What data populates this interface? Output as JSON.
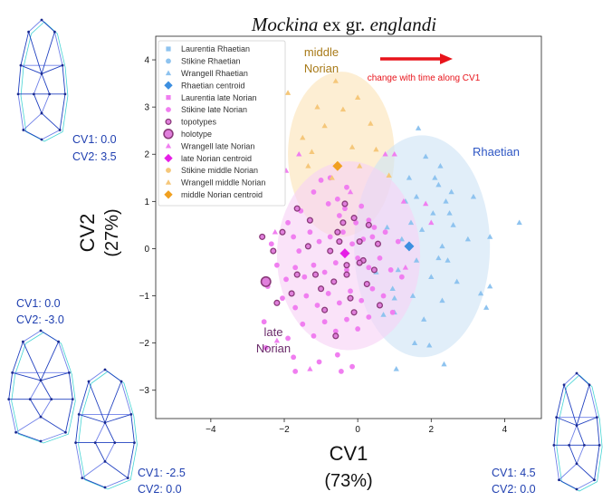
{
  "chart_data": {
    "type": "scatter",
    "title_prefix": "Mockina",
    "title_mid": " ex gr. ",
    "title_suffix": "englandi",
    "xlabel": "CV1",
    "xlabel_pct": "(73%)",
    "ylabel": "CV2",
    "ylabel_pct": "(27%)",
    "xlim": [
      -5.5,
      5.0
    ],
    "ylim": [
      -3.6,
      4.5
    ],
    "xticks": [
      -4,
      -2,
      0,
      2,
      4
    ],
    "yticks": [
      -3,
      -2,
      -1,
      0,
      1,
      2,
      3,
      4
    ],
    "xtick_labels": [
      "−4",
      "−2",
      "0",
      "2",
      "4"
    ],
    "ytick_labels": [
      "−3",
      "−2",
      "−1",
      "0",
      "1",
      "2",
      "3",
      "4"
    ],
    "grid": false,
    "legend_position": "top-left",
    "legend": [
      {
        "label": "Laurentia Rhaetian",
        "marker": "square",
        "color": "#8ec3ef"
      },
      {
        "label": "Stikine Rhaetian",
        "marker": "circle",
        "color": "#8ec3ef"
      },
      {
        "label": "Wrangell Rhaetian",
        "marker": "triangle",
        "color": "#8ec3ef"
      },
      {
        "label": "Rhaetian centroid",
        "marker": "diamond",
        "color": "#3d8fe0"
      },
      {
        "label": "Laurentia late Norian",
        "marker": "square",
        "color": "#f07ef0"
      },
      {
        "label": "Stikine late Norian",
        "marker": "circle",
        "color": "#f07ef0"
      },
      {
        "label": "topotypes",
        "marker": "ring",
        "color": "#8a3a7a"
      },
      {
        "label": "holotype",
        "marker": "ring-large",
        "color": "#8a3a7a"
      },
      {
        "label": "Wrangell late Norian",
        "marker": "triangle",
        "color": "#f07ef0"
      },
      {
        "label": "late Norian centroid",
        "marker": "diamond",
        "color": "#e61ee6"
      },
      {
        "label": "Stikine middle Norian",
        "marker": "circle",
        "color": "#f5c77a"
      },
      {
        "label": "Wrangell middle Norian",
        "marker": "triangle",
        "color": "#f5c77a"
      },
      {
        "label": "middle Norian centroid",
        "marker": "diamond",
        "color": "#f0a020"
      }
    ],
    "colors": {
      "rhaetian": "#8ec3ef",
      "rhaetian_centroid": "#3d8fe0",
      "late_norian": "#f07ef0",
      "late_norian_centroid": "#e61ee6",
      "middle_norian": "#f5c77a",
      "middle_norian_centroid": "#f0a020",
      "topotype_ring": "#8a3a7a"
    },
    "ellipses": [
      {
        "group": "middle Norian",
        "cx": -0.45,
        "cy": 2.0,
        "rx": 1.45,
        "ry": 1.75,
        "color": "#fbe4b8"
      },
      {
        "group": "Rhaetian",
        "cx": 1.75,
        "cy": 0.05,
        "rx": 1.85,
        "ry": 2.35,
        "color": "#cfe3f6"
      },
      {
        "group": "late Norian",
        "cx": -0.25,
        "cy": -0.15,
        "rx": 1.95,
        "ry": 2.0,
        "color": "#f7d2f5"
      }
    ],
    "centroids": [
      {
        "group": "Rhaetian",
        "x": 1.4,
        "y": 0.05
      },
      {
        "group": "late Norian",
        "x": -0.35,
        "y": -0.1
      },
      {
        "group": "middle Norian",
        "x": -0.55,
        "y": 1.75
      }
    ],
    "series": [
      {
        "name": "Rhaetian",
        "color": "#8ec3ef",
        "marker": "triangle",
        "points": [
          [
            4.4,
            0.55
          ],
          [
            3.6,
            0.25
          ],
          [
            2.1,
            1.5
          ],
          [
            1.65,
            2.55
          ],
          [
            1.85,
            1.95
          ],
          [
            2.25,
            1.75
          ],
          [
            2.4,
            1.0
          ],
          [
            1.0,
            -1.35
          ],
          [
            2.45,
            -0.25
          ],
          [
            1.0,
            -1.05
          ],
          [
            2.2,
            -0.2
          ],
          [
            3.5,
            -1.25
          ],
          [
            3.35,
            -0.95
          ],
          [
            2.35,
            -2.45
          ],
          [
            1.95,
            -2.05
          ],
          [
            1.55,
            -2.0
          ],
          [
            1.05,
            -2.55
          ],
          [
            2.3,
            0.05
          ],
          [
            1.6,
            1.1
          ],
          [
            3.15,
            1.1
          ],
          [
            2.5,
            0.75
          ],
          [
            1.3,
            1.0
          ],
          [
            2.05,
            0.75
          ],
          [
            2.55,
            1.2
          ],
          [
            1.75,
            0.4
          ],
          [
            1.4,
            1.5
          ],
          [
            2.6,
            0.5
          ],
          [
            1.2,
            0.2
          ],
          [
            2.0,
            -0.6
          ],
          [
            1.1,
            -0.45
          ],
          [
            2.7,
            -0.7
          ],
          [
            1.5,
            -1.0
          ],
          [
            0.5,
            -0.5
          ],
          [
            2.3,
            -1.1
          ],
          [
            1.8,
            -1.5
          ],
          [
            0.7,
            -1.4
          ],
          [
            3.0,
            0.2
          ],
          [
            1.6,
            -0.25
          ],
          [
            1.45,
            0.55
          ],
          [
            0.8,
            0.45
          ],
          [
            2.2,
            1.35
          ],
          [
            0.95,
            -0.85
          ],
          [
            3.6,
            -0.8
          ]
        ]
      },
      {
        "name": "late Norian",
        "color": "#f07ef0",
        "marker": "circle",
        "points": [
          [
            -1.2,
            1.2
          ],
          [
            -0.8,
            0.95
          ],
          [
            -0.55,
            1.05
          ],
          [
            -0.35,
            0.85
          ],
          [
            -0.5,
            0.7
          ],
          [
            0.1,
            0.9
          ],
          [
            0.3,
            0.6
          ],
          [
            0.45,
            0.45
          ],
          [
            -1.9,
            0.55
          ],
          [
            -1.75,
            0.25
          ],
          [
            -1.6,
            -0.05
          ],
          [
            -1.3,
            0.35
          ],
          [
            -1.05,
            0.15
          ],
          [
            -0.75,
            0.25
          ],
          [
            -0.4,
            0.35
          ],
          [
            -0.15,
            0.1
          ],
          [
            0.15,
            0.2
          ],
          [
            0.4,
            0.25
          ],
          [
            0.75,
            0.35
          ],
          [
            1.1,
            0.15
          ],
          [
            -2.2,
            -0.35
          ],
          [
            -1.95,
            -0.65
          ],
          [
            -1.7,
            -0.4
          ],
          [
            -1.45,
            -0.6
          ],
          [
            -1.2,
            -0.35
          ],
          [
            -0.9,
            -0.5
          ],
          [
            -0.6,
            -0.3
          ],
          [
            -0.3,
            -0.45
          ],
          [
            0.0,
            -0.2
          ],
          [
            0.3,
            -0.4
          ],
          [
            0.6,
            -0.2
          ],
          [
            0.9,
            -0.45
          ],
          [
            1.2,
            -0.6
          ],
          [
            -2.05,
            -1.05
          ],
          [
            -1.7,
            -1.25
          ],
          [
            -1.4,
            -1.0
          ],
          [
            -1.1,
            -1.2
          ],
          [
            -0.8,
            -0.95
          ],
          [
            -0.5,
            -1.15
          ],
          [
            -0.2,
            -0.9
          ],
          [
            0.1,
            -1.1
          ],
          [
            0.4,
            -0.85
          ],
          [
            0.7,
            -1.0
          ],
          [
            -1.5,
            -1.6
          ],
          [
            -1.2,
            -1.85
          ],
          [
            -0.9,
            -1.55
          ],
          [
            -0.6,
            -1.75
          ],
          [
            -0.3,
            -1.5
          ],
          [
            0.0,
            -1.7
          ],
          [
            0.3,
            -1.45
          ],
          [
            -1.9,
            -1.9
          ],
          [
            -1.75,
            -2.3
          ],
          [
            -1.05,
            -2.4
          ],
          [
            -0.55,
            -2.25
          ],
          [
            -1.7,
            -2.6
          ],
          [
            -0.15,
            -2.5
          ],
          [
            -2.55,
            -1.55
          ],
          [
            -2.45,
            -0.8
          ],
          [
            -2.35,
            0.1
          ],
          [
            -0.75,
            1.5
          ],
          [
            -1.0,
            1.45
          ],
          [
            -0.3,
            1.3
          ],
          [
            -0.45,
            -2.6
          ],
          [
            0.95,
            -1.35
          ],
          [
            -0.05,
            0.55
          ],
          [
            -1.55,
            0.8
          ],
          [
            -2.5,
            -2.1
          ]
        ]
      },
      {
        "name": "late Norian (Wrangell)",
        "color": "#f07ef0",
        "marker": "triangle",
        "points": [
          [
            -1.6,
            2.0
          ],
          [
            -0.2,
            1.2
          ],
          [
            1.25,
            1.0
          ],
          [
            1.0,
            2.0
          ],
          [
            1.85,
            0.95
          ],
          [
            1.3,
            -0.4
          ],
          [
            -2.2,
            -1.95
          ],
          [
            -2.25,
            0.35
          ],
          [
            -1.95,
            1.65
          ],
          [
            0.75,
            2.0
          ],
          [
            2.0,
            0.55
          ],
          [
            -1.3,
            -2.55
          ]
        ]
      },
      {
        "name": "middle Norian",
        "color": "#f5c77a",
        "marker": "triangle",
        "points": [
          [
            -0.6,
            3.55
          ],
          [
            -1.1,
            3.0
          ],
          [
            -0.9,
            2.6
          ],
          [
            -0.4,
            2.95
          ],
          [
            0.0,
            3.2
          ],
          [
            0.35,
            2.65
          ],
          [
            -1.5,
            2.35
          ],
          [
            -1.25,
            2.05
          ],
          [
            -0.15,
            2.15
          ],
          [
            0.5,
            2.1
          ],
          [
            -0.7,
            1.5
          ],
          [
            0.85,
            1.55
          ],
          [
            -1.9,
            3.3
          ],
          [
            0.05,
            1.75
          ],
          [
            -1.35,
            1.75
          ]
        ]
      },
      {
        "name": "topotypes",
        "color": "#8a3a7a",
        "marker": "ring",
        "points": [
          [
            -2.6,
            0.25
          ],
          [
            -2.3,
            -0.05
          ],
          [
            -1.65,
            -0.55
          ],
          [
            -1.35,
            0.05
          ],
          [
            -1.0,
            -0.85
          ],
          [
            -0.75,
            -0.05
          ],
          [
            -0.55,
            0.35
          ],
          [
            -0.4,
            0.55
          ],
          [
            -0.3,
            -0.55
          ],
          [
            -0.1,
            0.65
          ],
          [
            0.05,
            0.15
          ],
          [
            0.15,
            -0.25
          ],
          [
            0.3,
            0.5
          ],
          [
            0.45,
            -0.45
          ],
          [
            0.25,
            -0.75
          ],
          [
            -0.65,
            -0.7
          ],
          [
            -1.15,
            -0.55
          ],
          [
            -0.9,
            -1.3
          ],
          [
            -2.2,
            -1.15
          ],
          [
            -1.8,
            -0.95
          ],
          [
            -0.2,
            -1.05
          ],
          [
            0.55,
            0.1
          ],
          [
            -0.35,
            0.95
          ],
          [
            0.05,
            -0.3
          ],
          [
            0.6,
            -1.2
          ],
          [
            -1.3,
            0.6
          ],
          [
            -0.6,
            -1.85
          ],
          [
            -0.1,
            -1.35
          ],
          [
            -0.5,
            0.15
          ],
          [
            -1.65,
            0.85
          ],
          [
            -2.05,
            0.35
          ],
          [
            -0.3,
            -0.35
          ]
        ]
      },
      {
        "name": "holotype",
        "color": "#8a3a7a",
        "marker": "ring-large",
        "points": [
          [
            -2.5,
            -0.7
          ]
        ]
      }
    ]
  },
  "annotations": {
    "middle_norian_line1": "middle",
    "middle_norian_line2": "Norian",
    "rhaetian": "Rhaetian",
    "late_norian_line1": "late",
    "late_norian_line2": "Norian",
    "arrow_text": "change with time along CV1",
    "middle_norian_color": "#a87a18",
    "rhaetian_color": "#2e56c4",
    "late_norian_color": "#6a2b6a",
    "arrow_color": "#e8141b"
  },
  "shape_labels": {
    "top_left": {
      "cv1": "CV1: 0.0",
      "cv2": "CV2: 3.5"
    },
    "mid_left": {
      "cv1": "CV1: 0.0",
      "cv2": "CV2: -3.0"
    },
    "bottom_left": {
      "cv1": "CV1: -2.5",
      "cv2": "CV2: 0.0"
    },
    "bottom_right": {
      "cv1": "CV1: 4.5",
      "cv2": "CV2: 0.0"
    },
    "wire_colors": {
      "primary": "#2040c0",
      "secondary": "#6f80e8",
      "outline": "#45d4d4",
      "dot": "#1a2a90"
    }
  }
}
